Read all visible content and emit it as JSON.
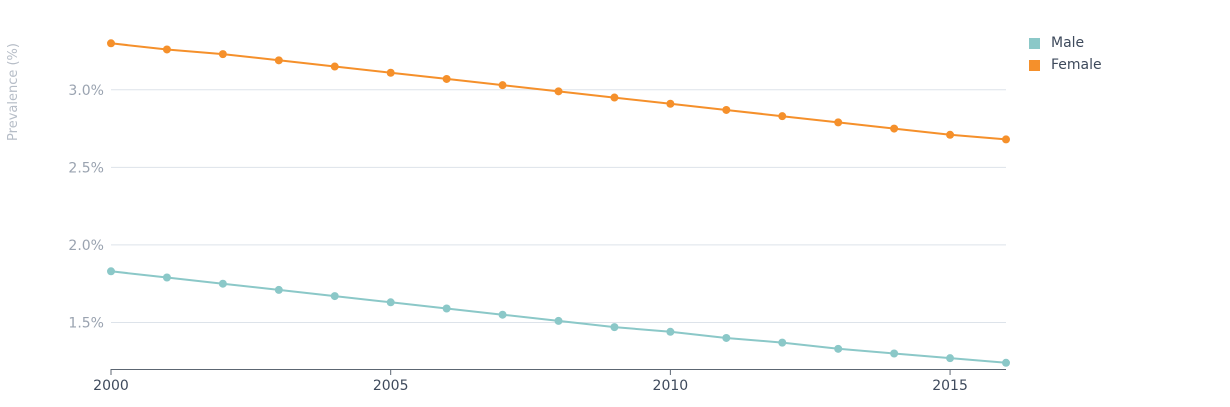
{
  "chart_data": {
    "type": "line",
    "title": "",
    "xlabel": "",
    "ylabel": "Prevalence (%)",
    "x": [
      2000,
      2001,
      2002,
      2003,
      2004,
      2005,
      2006,
      2007,
      2008,
      2009,
      2010,
      2011,
      2012,
      2013,
      2014,
      2015,
      2016
    ],
    "xlim": [
      2000,
      2016
    ],
    "ylim": [
      1.2,
      3.45
    ],
    "x_ticks": [
      2000,
      2005,
      2010,
      2015
    ],
    "x_tick_labels": [
      "2000",
      "2005",
      "2010",
      "2015"
    ],
    "y_ticks": [
      1.5,
      2.0,
      2.5,
      3.0
    ],
    "y_tick_labels": [
      "1.5%",
      "2.0%",
      "2.5%",
      "3.0%"
    ],
    "grid": "horizontal",
    "legend_position": "top-right",
    "series": [
      {
        "name": "Male",
        "color": "#8bc8c8",
        "values": [
          1.83,
          1.79,
          1.75,
          1.71,
          1.67,
          1.63,
          1.59,
          1.55,
          1.51,
          1.47,
          1.44,
          1.4,
          1.37,
          1.33,
          1.3,
          1.27,
          1.24
        ]
      },
      {
        "name": "Female",
        "color": "#f5902b",
        "values": [
          3.3,
          3.26,
          3.23,
          3.19,
          3.15,
          3.11,
          3.07,
          3.03,
          2.99,
          2.95,
          2.91,
          2.87,
          2.83,
          2.79,
          2.75,
          2.71,
          2.68
        ]
      }
    ]
  },
  "legend": {
    "items": [
      {
        "label": "Male",
        "color": "#8bc8c8"
      },
      {
        "label": "Female",
        "color": "#f5902b"
      }
    ]
  },
  "colors": {
    "gridline": "#dde3ea",
    "axis": "#5c6672",
    "tick_text": "#9aa3b0",
    "x_tick_text": "#3e4a5c"
  }
}
